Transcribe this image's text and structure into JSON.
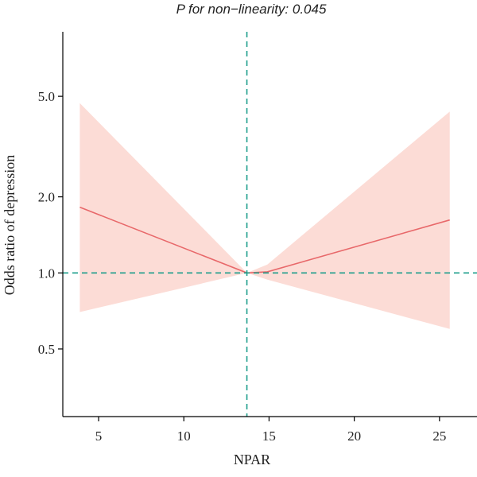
{
  "chart_data": {
    "type": "line",
    "title": "P for non−linearity: 0.045",
    "xlabel": "NPAR",
    "ylabel": "Odds ratio of depression",
    "xlim": [
      2.9,
      27.2
    ],
    "ylim": [
      0.27,
      9.0
    ],
    "y_scale": "log",
    "x_ticks": [
      5,
      10,
      15,
      20,
      25
    ],
    "x_tick_labels": [
      "5",
      "10",
      "15",
      "20",
      "25"
    ],
    "y_ticks": [
      0.5,
      1.0,
      2.0,
      5.0
    ],
    "y_tick_labels": [
      "0.5",
      "1.0",
      "2.0",
      "5.0"
    ],
    "reference_lines": {
      "x": 13.7,
      "y": 1.0
    },
    "series": [
      {
        "x": [
          3.9,
          13.7,
          14.9,
          25.6
        ],
        "y": [
          1.82,
          1.0,
          1.01,
          1.62
        ],
        "ci_lower": [
          0.7,
          1.0,
          0.94,
          0.6
        ],
        "ci_upper": [
          4.7,
          1.0,
          1.08,
          4.35
        ]
      }
    ],
    "colors": {
      "line": "#e8686a",
      "band": "#fcdcd6",
      "reference": "#1e9e8c",
      "axis": "#000000"
    },
    "grid": false
  }
}
